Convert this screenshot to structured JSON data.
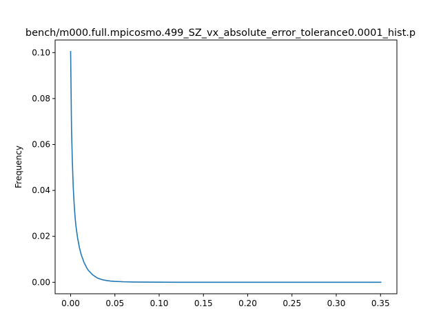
{
  "chart_data": {
    "type": "line",
    "title": "bench/m000.full.mpicosmo.499_SZ_vx_absolute_error_tolerance0.0001_hist.p",
    "xlabel": "",
    "ylabel": "Frequency",
    "xlim": [
      -0.0175,
      0.3685
    ],
    "ylim": [
      -0.005,
      0.1055
    ],
    "x_ticks": [
      0.0,
      0.05,
      0.1,
      0.15,
      0.2,
      0.25,
      0.3,
      0.35
    ],
    "x_tick_labels": [
      "0.00",
      "0.05",
      "0.10",
      "0.15",
      "0.20",
      "0.25",
      "0.30",
      "0.35"
    ],
    "y_ticks": [
      0.0,
      0.02,
      0.04,
      0.06,
      0.08,
      0.1
    ],
    "y_tick_labels": [
      "0.00",
      "0.02",
      "0.04",
      "0.06",
      "0.08",
      "0.10"
    ],
    "grid": false,
    "series": [
      {
        "color": "#1f77b4",
        "x": [
          0.0,
          0.001,
          0.002,
          0.003,
          0.004,
          0.005,
          0.006,
          0.008,
          0.01,
          0.012,
          0.015,
          0.018,
          0.02,
          0.025,
          0.03,
          0.035,
          0.04,
          0.045,
          0.05,
          0.06,
          0.07,
          0.08,
          0.1,
          0.12,
          0.15,
          0.2,
          0.25,
          0.3,
          0.351
        ],
        "y": [
          0.1007,
          0.067,
          0.052,
          0.041,
          0.034,
          0.0285,
          0.0245,
          0.019,
          0.015,
          0.012,
          0.0088,
          0.0064,
          0.0052,
          0.0032,
          0.0019,
          0.0012,
          0.0008,
          0.00055,
          0.0004,
          0.00022,
          0.00013,
          8e-05,
          4e-05,
          2e-05,
          1e-05,
          5e-06,
          3e-06,
          2e-06,
          1e-06
        ]
      }
    ]
  }
}
